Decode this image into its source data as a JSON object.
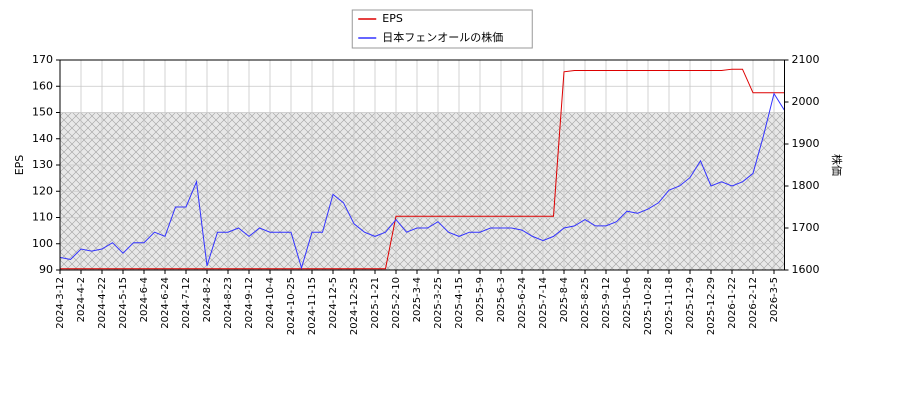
{
  "chart_data": {
    "type": "line",
    "legend_labels_order": null,
    "y_label": "EPS",
    "y2_label": "株価",
    "x": [
      "2024-3-12",
      null,
      "2024-4-2",
      null,
      "2024-4-22",
      null,
      "2024-5-15",
      null,
      "2024-6-4",
      null,
      "2024-6-24",
      null,
      "2024-7-12",
      null,
      "2024-8-2",
      null,
      "2024-8-23",
      null,
      "2024-9-12",
      null,
      "2024-10-4",
      null,
      "2024-10-25",
      null,
      "2024-11-15",
      null,
      "2024-12-5",
      null,
      "2024-12-25",
      null,
      "2025-1-21",
      null,
      "2025-2-10",
      null,
      "2025-3-4",
      null,
      "2025-3-25",
      null,
      "2025-4-15",
      null,
      "2025-5-9",
      null,
      "2025-6-3",
      null,
      "2025-6-24",
      null,
      "2025-7-14",
      null,
      "2025-8-4",
      null,
      "2025-8-25",
      null,
      "2025-9-12",
      null,
      "2025-10-6",
      null,
      "2025-10-28",
      null,
      "2025-11-18",
      null,
      "2025-12-9",
      null,
      "2025-12-29",
      null,
      "2026-1-22",
      null,
      "2026-2-12",
      null,
      "2026-3-5",
      null
    ],
    "series": [
      {
        "name": "EPS",
        "color": "#dd0000",
        "axis": "y",
        "values": [
          90.5,
          90.5,
          90.5,
          90.5,
          90.5,
          90.5,
          90.5,
          90.5,
          90.5,
          90.5,
          90.5,
          90.5,
          90.5,
          90.5,
          90.5,
          90.5,
          90.5,
          90.5,
          90.5,
          90.5,
          90.5,
          90.5,
          90.5,
          90.5,
          90.5,
          90.5,
          90.5,
          90.5,
          90.5,
          90.5,
          90.5,
          90.5,
          110.5,
          110.5,
          110.5,
          110.5,
          110.5,
          110.5,
          110.5,
          110.5,
          110.5,
          110.5,
          110.5,
          110.5,
          110.5,
          110.5,
          110.5,
          110.5,
          165.5,
          166,
          166,
          166,
          166,
          166,
          166,
          166,
          166,
          166,
          166,
          166,
          166,
          166,
          166,
          166,
          166.5,
          166.5,
          157.5,
          157.5,
          157.5,
          157.5
        ]
      },
      {
        "name": "日本フェンオールの株価",
        "color": "#3333ff",
        "axis": "y2",
        "values": [
          1630,
          1625,
          1650,
          1645,
          1650,
          1665,
          1640,
          1665,
          1665,
          1690,
          1680,
          1750,
          1750,
          1810,
          1610,
          1690,
          1690,
          1700,
          1680,
          1700,
          1690,
          1690,
          1690,
          1605,
          1690,
          1690,
          1780,
          1760,
          1710,
          1690,
          1680,
          1690,
          1720,
          1690,
          1700,
          1700,
          1715,
          1690,
          1680,
          1690,
          1690,
          1700,
          1700,
          1700,
          1695,
          1680,
          1670,
          1680,
          1700,
          1705,
          1720,
          1705,
          1705,
          1715,
          1740,
          1735,
          1745,
          1760,
          1790,
          1800,
          1820,
          1860,
          1800,
          1810,
          1800,
          1810,
          1830,
          1920,
          2020,
          1980
        ]
      }
    ],
    "ylim": [
      90,
      170
    ],
    "yticks": [
      90,
      100,
      110,
      120,
      130,
      140,
      150,
      160,
      170
    ],
    "y2lim": [
      1600,
      2100
    ],
    "y2ticks": [
      1600,
      1700,
      1800,
      1900,
      2000,
      2100
    ],
    "hatch_ylim": [
      90,
      150
    ],
    "grid": true,
    "legend": "top"
  }
}
